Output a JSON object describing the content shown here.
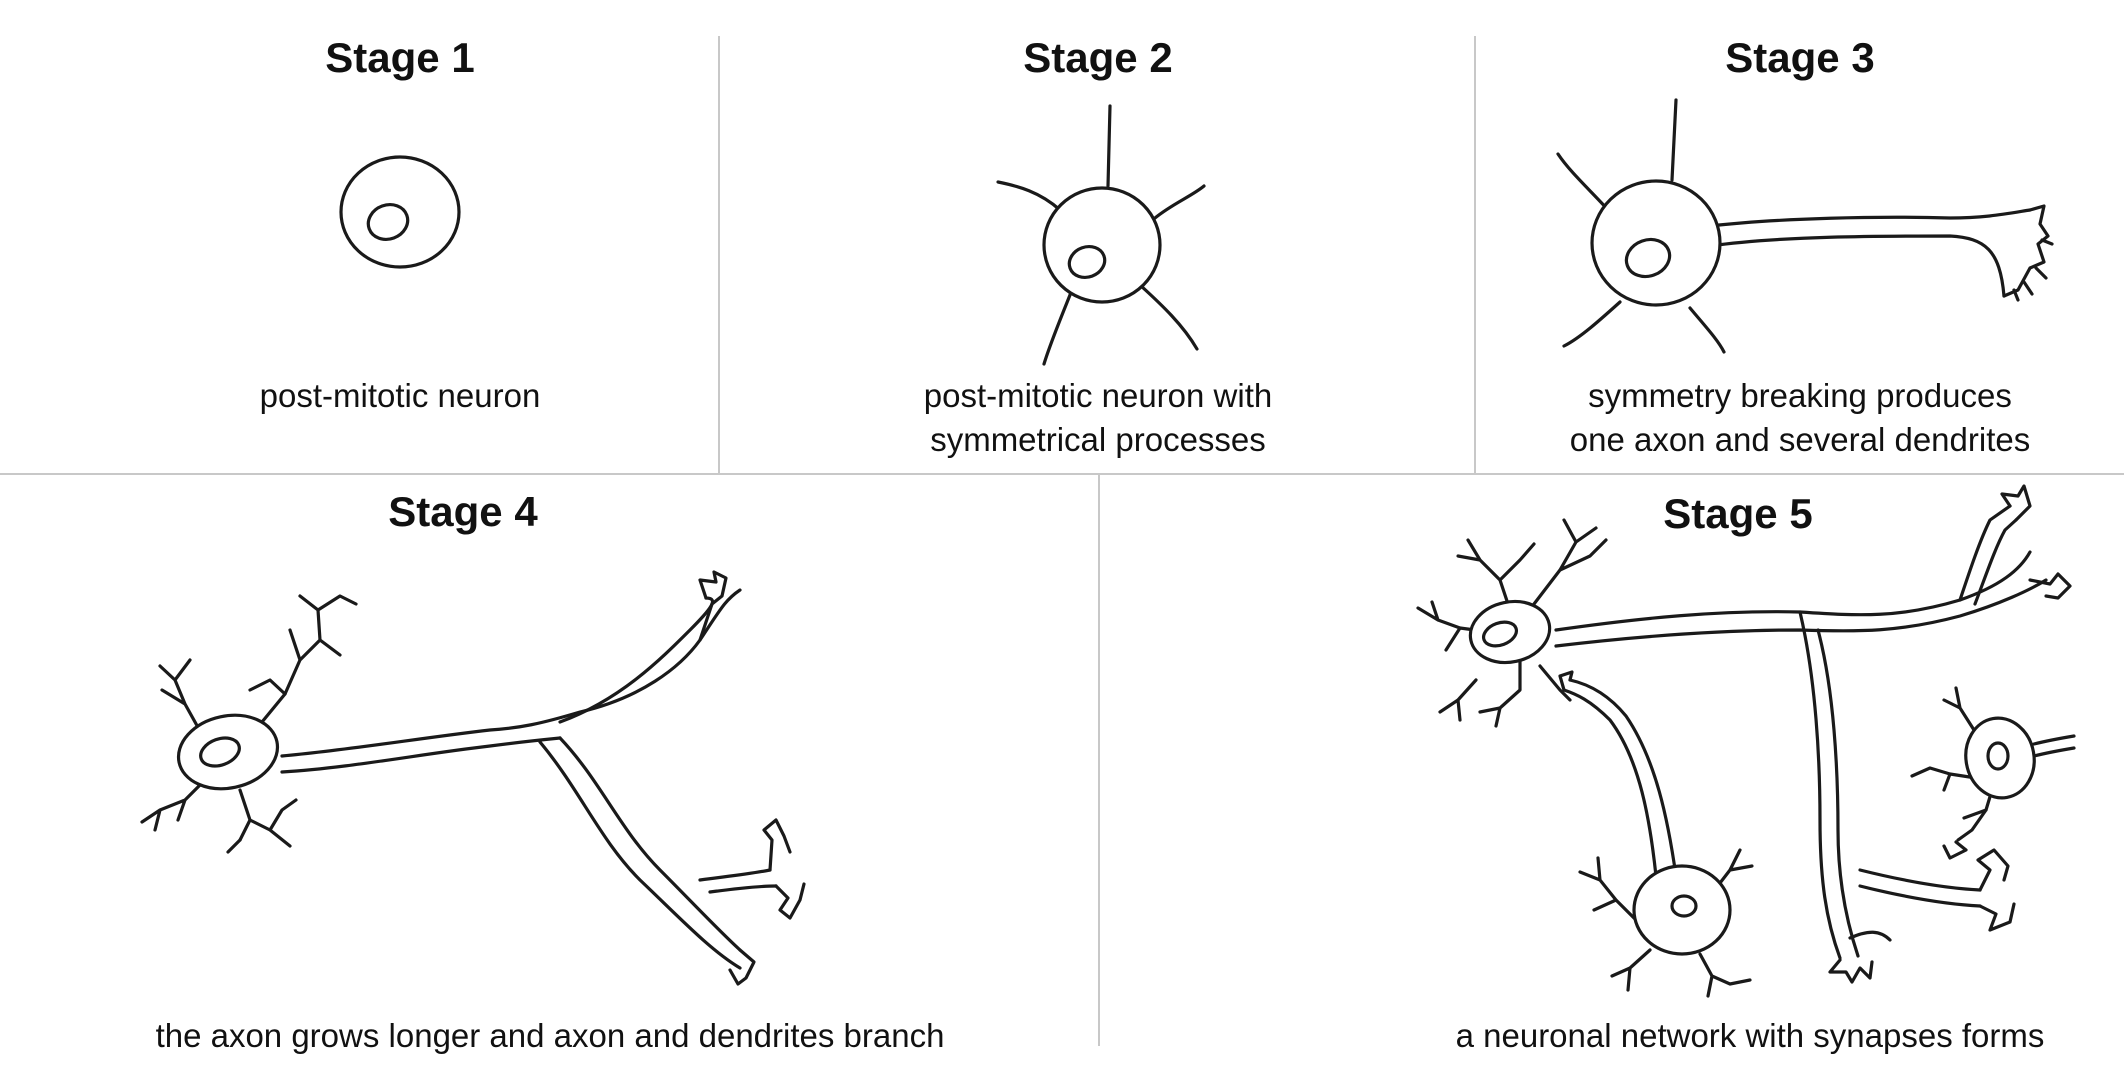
{
  "stages": [
    {
      "title": "Stage 1",
      "caption_lines": [
        "post-mitotic neuron"
      ]
    },
    {
      "title": "Stage 2",
      "caption_lines": [
        "post-mitotic neuron  with",
        "symmetrical  processes"
      ]
    },
    {
      "title": "Stage 3",
      "caption_lines": [
        "symmetry breaking produces",
        "one axon and several dendrites"
      ]
    },
    {
      "title": "Stage 4",
      "caption_lines": [
        "the axon grows longer and axon and dendrites branch"
      ]
    },
    {
      "title": "Stage 5",
      "caption_lines": [
        "a neuronal network with synapses forms"
      ]
    }
  ]
}
